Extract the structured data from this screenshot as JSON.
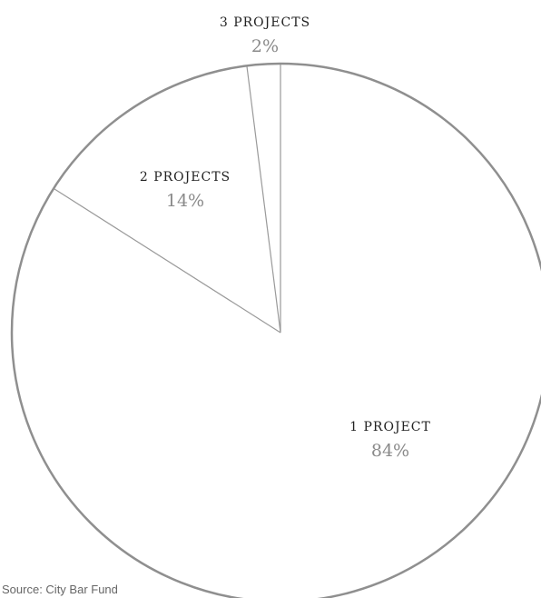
{
  "chart_data": {
    "type": "pie",
    "categories": [
      "1 PROJECT",
      "2 PROJECTS",
      "3 PROJECTS"
    ],
    "values": [
      84,
      14,
      2
    ],
    "value_labels": [
      "84%",
      "14%",
      "2%"
    ],
    "start": "top",
    "direction": "clockwise",
    "legend": "none",
    "colors": {
      "fill": "#ffffff",
      "outline": "#8f8f8f",
      "divider": "#9a9a9a",
      "label": "#222222",
      "value": "#8a8a8a"
    }
  },
  "source": "Source: City Bar Fund"
}
